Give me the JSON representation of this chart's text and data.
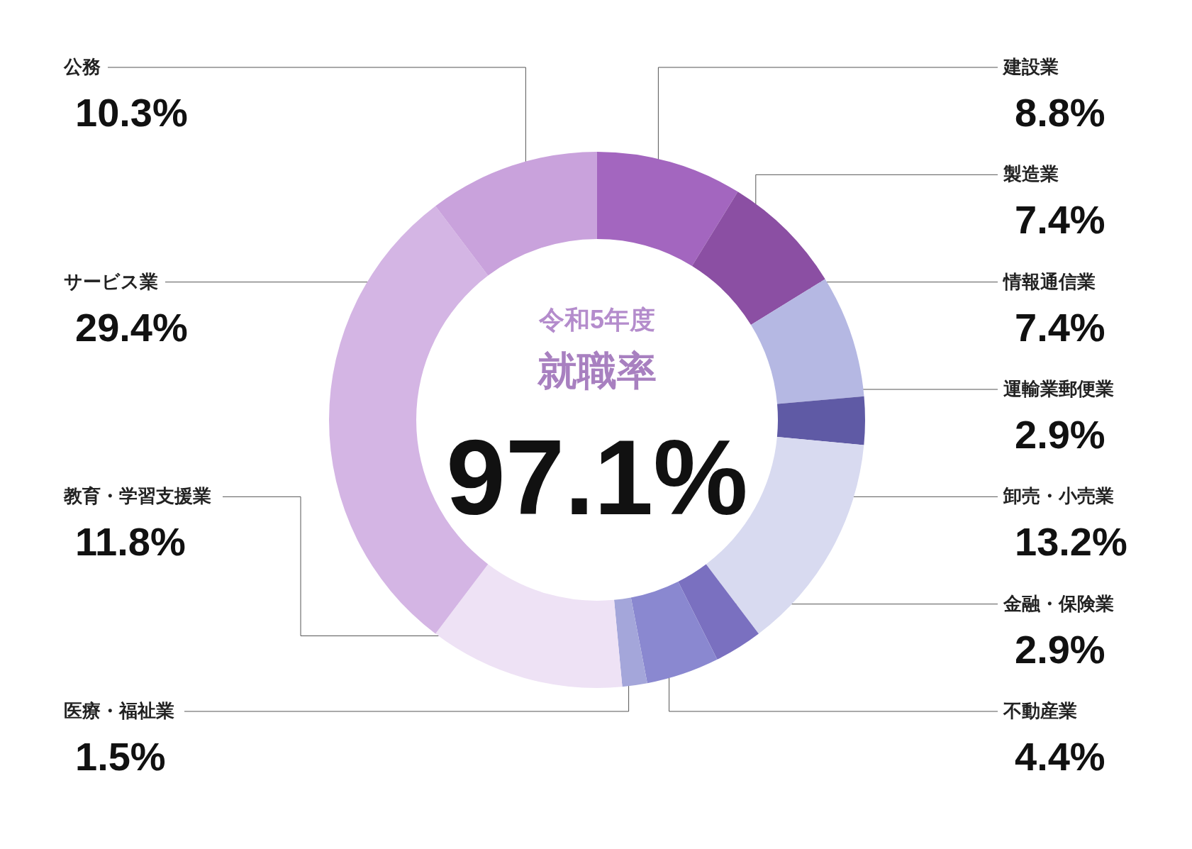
{
  "chart_data": {
    "type": "donut",
    "title": "就職率",
    "subtitle": "令和5年度",
    "categories": [
      "建設業",
      "製造業",
      "情報通信業",
      "運輸業郵便業",
      "卸売・小売業",
      "金融・保険業",
      "不動産業",
      "医療・福祉業",
      "教育・学習支援業",
      "サービス業",
      "公務"
    ],
    "values": [
      8.8,
      7.4,
      7.4,
      2.9,
      13.2,
      2.9,
      4.4,
      1.5,
      11.8,
      29.4,
      10.3
    ],
    "colors": [
      "#a366bf",
      "#8b4fa3",
      "#b5b8e3",
      "#5f5aa5",
      "#d8daf0",
      "#7a70c0",
      "#8a88d0",
      "#a4a6da",
      "#eee2f5",
      "#d4b5e4",
      "#c9a2dc"
    ],
    "value_labels": [
      "8.8%",
      "7.4%",
      "7.4%",
      "2.9%",
      "13.2%",
      "2.9%",
      "4.4%",
      "1.5%",
      "11.8%",
      "29.4%",
      "10.3%"
    ],
    "annotations": [
      "97.1%"
    ]
  }
}
